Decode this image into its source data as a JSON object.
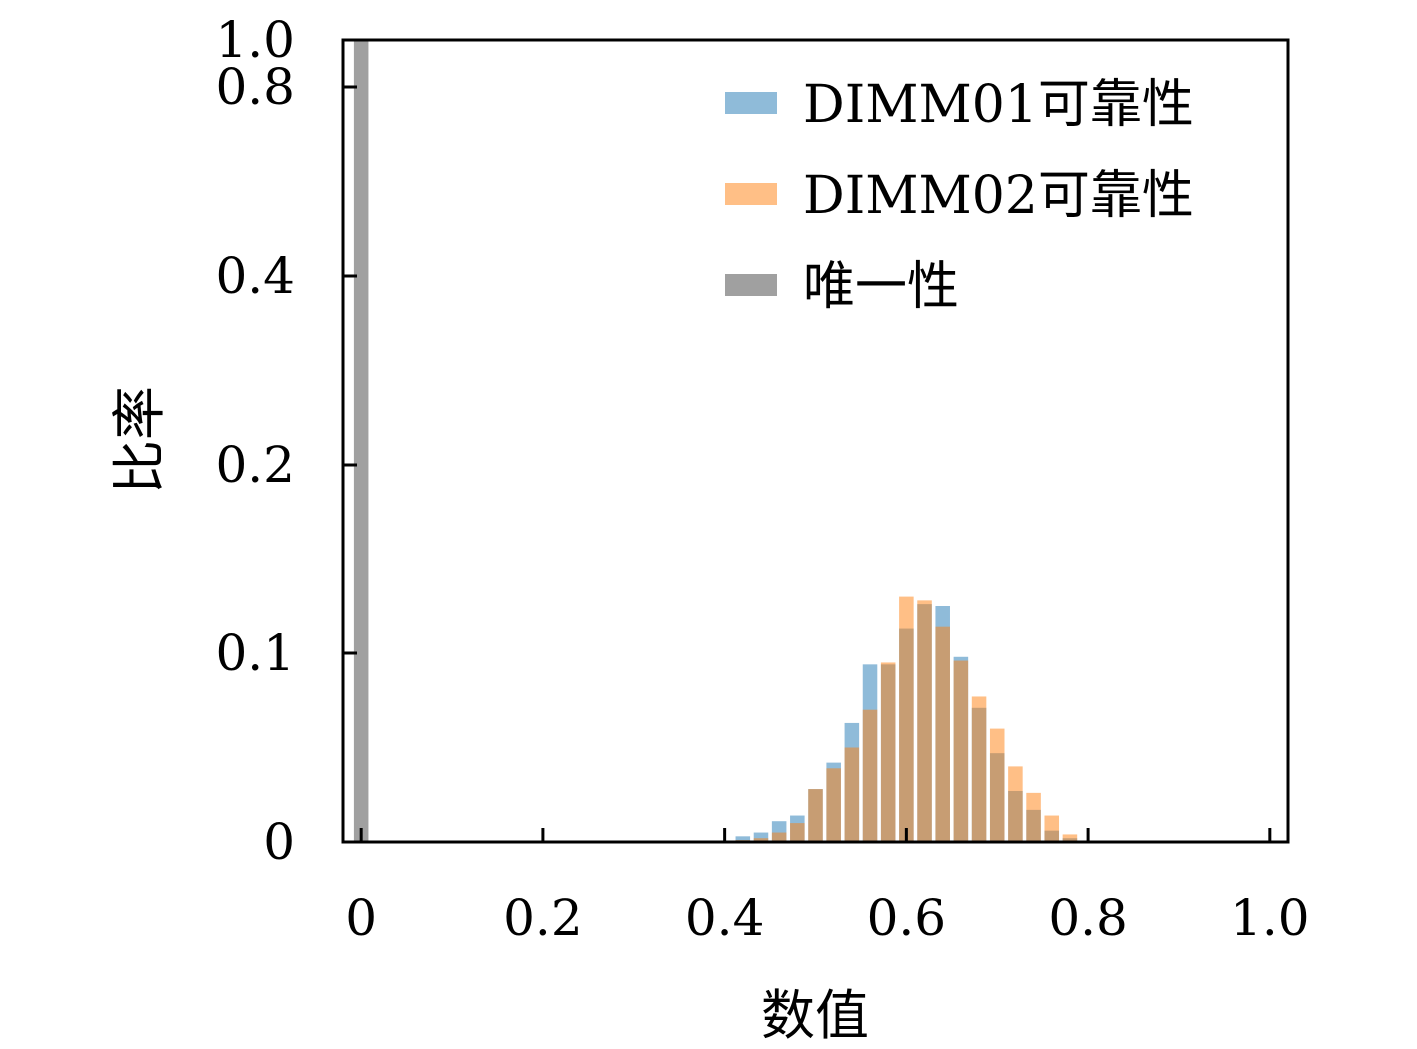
{
  "chart_data": {
    "type": "bar",
    "xlabel": "数值",
    "ylabel": "比率",
    "xlim": [
      -0.02,
      1.02
    ],
    "ylim_display": [
      0,
      1.0
    ],
    "y_scale": "piecewise",
    "x_ticks": [
      {
        "value": 0,
        "label": "0"
      },
      {
        "value": 0.2,
        "label": "0.2"
      },
      {
        "value": 0.4,
        "label": "0.4"
      },
      {
        "value": 0.6,
        "label": "0.6"
      },
      {
        "value": 0.8,
        "label": "0.8"
      },
      {
        "value": 1.0,
        "label": "1.0"
      }
    ],
    "y_ticks": [
      {
        "value": 0,
        "label": "0"
      },
      {
        "value": 0.1,
        "label": "0.1"
      },
      {
        "value": 0.2,
        "label": "0.2"
      },
      {
        "value": 0.4,
        "label": "0.4"
      },
      {
        "value": 0.8,
        "label": "0.8"
      },
      {
        "value": 1.0,
        "label": "1.0"
      }
    ],
    "grid": false,
    "legend_position": "top-right",
    "bin_centers": [
      0.42,
      0.44,
      0.46,
      0.48,
      0.5,
      0.52,
      0.54,
      0.56,
      0.58,
      0.6,
      0.62,
      0.64,
      0.66,
      0.68,
      0.7,
      0.72,
      0.74,
      0.76,
      0.78
    ],
    "bin_width": 0.016,
    "series": [
      {
        "name": "DIMM01可靠性",
        "color": "#1f77b4",
        "opacity": 0.5,
        "values": [
          0.003,
          0.005,
          0.011,
          0.014,
          0.028,
          0.042,
          0.063,
          0.094,
          0.094,
          0.113,
          0.126,
          0.125,
          0.098,
          0.071,
          0.047,
          0.027,
          0.017,
          0.006,
          0.002
        ]
      },
      {
        "name": "DIMM02可靠性",
        "color": "#ff7f0e",
        "opacity": 0.5,
        "values": [
          0.001,
          0.002,
          0.005,
          0.01,
          0.028,
          0.039,
          0.05,
          0.07,
          0.095,
          0.13,
          0.128,
          0.114,
          0.096,
          0.077,
          0.06,
          0.04,
          0.026,
          0.014,
          0.004
        ]
      },
      {
        "name": "唯一性",
        "color": "#808080",
        "opacity": 0.75,
        "bin_centers": [
          0.0
        ],
        "bin_width": 0.016,
        "values": [
          1.0
        ]
      }
    ]
  }
}
